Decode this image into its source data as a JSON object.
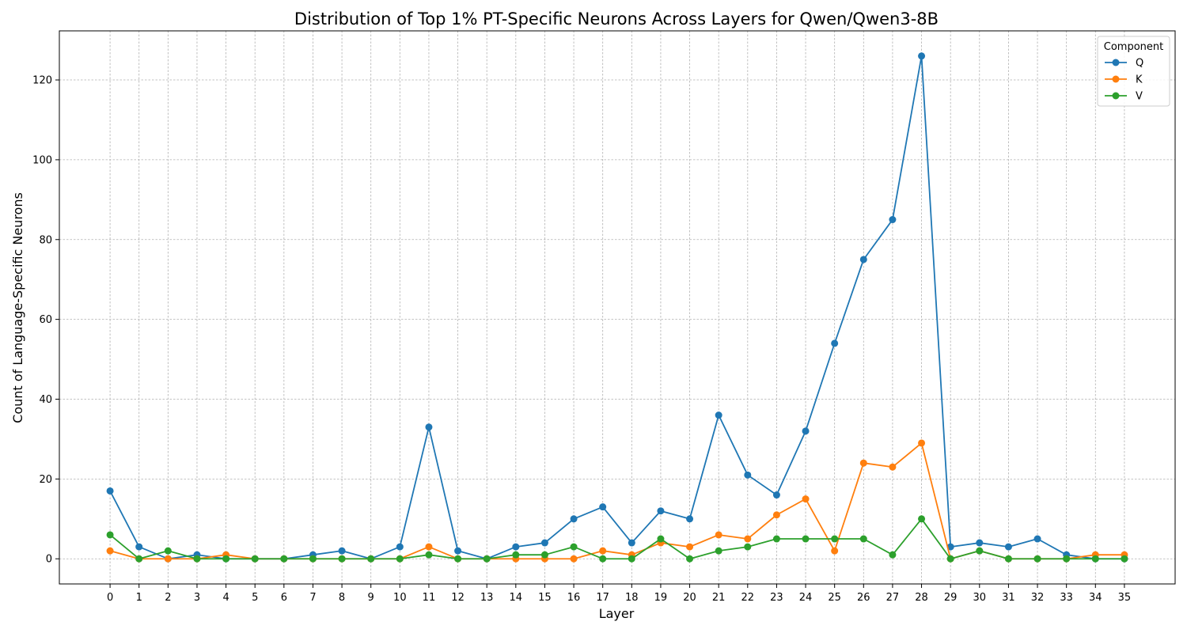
{
  "chart_data": {
    "type": "line",
    "title": "Distribution of Top 1% PT-Specific Neurons Across Layers for Qwen/Qwen3-8B",
    "xlabel": "Layer",
    "ylabel": "Count of Language-Specific Neurons",
    "x": [
      0,
      1,
      2,
      3,
      4,
      5,
      6,
      7,
      8,
      9,
      10,
      11,
      12,
      13,
      14,
      15,
      16,
      17,
      18,
      19,
      20,
      21,
      22,
      23,
      24,
      25,
      26,
      27,
      28,
      29,
      30,
      31,
      32,
      33,
      34,
      35
    ],
    "xticks": [
      "0",
      "1",
      "2",
      "3",
      "4",
      "5",
      "6",
      "7",
      "8",
      "9",
      "10",
      "11",
      "12",
      "13",
      "14",
      "15",
      "16",
      "17",
      "18",
      "19",
      "20",
      "21",
      "22",
      "23",
      "24",
      "25",
      "26",
      "27",
      "28",
      "29",
      "30",
      "31",
      "32",
      "33",
      "34",
      "35"
    ],
    "yticks": [
      0,
      20,
      40,
      60,
      80,
      100,
      120
    ],
    "xlim": [
      -1.75,
      36.75
    ],
    "ylim": [
      -6.3,
      132.3
    ],
    "grid": true,
    "legend": {
      "title": "Component",
      "position": "top-right"
    },
    "series": [
      {
        "name": "Q",
        "color": "#1f77b4",
        "values": [
          17,
          3,
          0,
          1,
          0,
          0,
          0,
          1,
          2,
          0,
          3,
          33,
          2,
          0,
          3,
          4,
          10,
          13,
          4,
          12,
          10,
          36,
          21,
          16,
          32,
          54,
          75,
          85,
          126,
          3,
          4,
          3,
          5,
          1,
          0,
          0
        ]
      },
      {
        "name": "K",
        "color": "#ff7f0e",
        "values": [
          2,
          0,
          0,
          0,
          1,
          0,
          0,
          0,
          0,
          0,
          0,
          3,
          0,
          0,
          0,
          0,
          0,
          2,
          1,
          4,
          3,
          6,
          5,
          11,
          15,
          2,
          24,
          23,
          29,
          0,
          2,
          0,
          0,
          0,
          1,
          1
        ]
      },
      {
        "name": "V",
        "color": "#2ca02c",
        "values": [
          6,
          0,
          2,
          0,
          0,
          0,
          0,
          0,
          0,
          0,
          0,
          1,
          0,
          0,
          1,
          1,
          3,
          0,
          0,
          5,
          0,
          2,
          3,
          5,
          5,
          5,
          5,
          1,
          10,
          0,
          2,
          0,
          0,
          0,
          0,
          0
        ]
      }
    ]
  }
}
